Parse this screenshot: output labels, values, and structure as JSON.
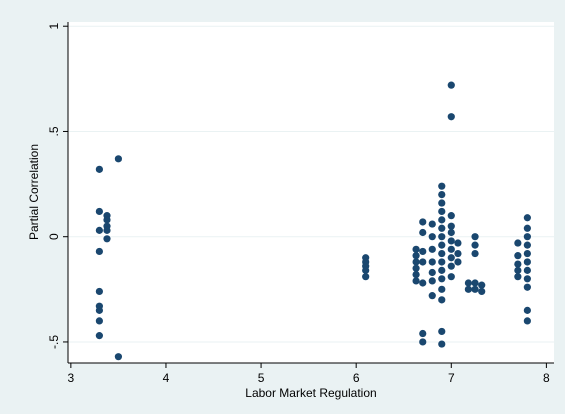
{
  "chart_data": {
    "type": "scatter",
    "title": "",
    "xlabel": "Labor Market Regulation",
    "ylabel": "Partial Correlation",
    "xlim": [
      2.97,
      8.08
    ],
    "ylim": [
      -0.6,
      1.02
    ],
    "xticks": [
      3,
      4,
      5,
      6,
      7,
      8
    ],
    "yticks": [
      1,
      0.5,
      0,
      -0.5
    ],
    "ytick_labels": [
      "1",
      ".5",
      "0",
      "-.5"
    ],
    "grid": "horizontal",
    "colors": {
      "background": "#eaf2f3",
      "plot": "#ffffff",
      "marker": "#1a476f",
      "grid": "#eaf2f3",
      "axis": "#000000"
    },
    "points": [
      [
        3.3,
        0.32
      ],
      [
        3.3,
        0.12
      ],
      [
        3.3,
        0.03
      ],
      [
        3.3,
        -0.07
      ],
      [
        3.3,
        -0.26
      ],
      [
        3.3,
        -0.33
      ],
      [
        3.3,
        -0.35
      ],
      [
        3.3,
        -0.4
      ],
      [
        3.3,
        -0.47
      ],
      [
        3.38,
        0.1
      ],
      [
        3.38,
        0.08
      ],
      [
        3.38,
        0.05
      ],
      [
        3.38,
        0.03
      ],
      [
        3.38,
        -0.01
      ],
      [
        3.5,
        0.37
      ],
      [
        3.5,
        -0.57
      ],
      [
        6.1,
        -0.1
      ],
      [
        6.1,
        -0.12
      ],
      [
        6.1,
        -0.14
      ],
      [
        6.1,
        -0.16
      ],
      [
        6.1,
        -0.19
      ],
      [
        6.63,
        -0.06
      ],
      [
        6.63,
        -0.09
      ],
      [
        6.63,
        -0.12
      ],
      [
        6.63,
        -0.15
      ],
      [
        6.63,
        -0.18
      ],
      [
        6.63,
        -0.21
      ],
      [
        6.7,
        0.07
      ],
      [
        6.7,
        0.02
      ],
      [
        6.7,
        -0.07
      ],
      [
        6.7,
        -0.12
      ],
      [
        6.7,
        -0.22
      ],
      [
        6.7,
        -0.46
      ],
      [
        6.7,
        -0.5
      ],
      [
        6.8,
        0.06
      ],
      [
        6.8,
        0.0
      ],
      [
        6.8,
        -0.06
      ],
      [
        6.8,
        -0.12
      ],
      [
        6.8,
        -0.17
      ],
      [
        6.8,
        -0.21
      ],
      [
        6.8,
        -0.28
      ],
      [
        6.9,
        0.24
      ],
      [
        6.9,
        0.2
      ],
      [
        6.9,
        0.16
      ],
      [
        6.9,
        0.12
      ],
      [
        6.9,
        0.08
      ],
      [
        6.9,
        0.04
      ],
      [
        6.9,
        0.0
      ],
      [
        6.9,
        -0.04
      ],
      [
        6.9,
        -0.08
      ],
      [
        6.9,
        -0.12
      ],
      [
        6.9,
        -0.16
      ],
      [
        6.9,
        -0.2
      ],
      [
        6.9,
        -0.25
      ],
      [
        6.9,
        -0.3
      ],
      [
        6.9,
        -0.45
      ],
      [
        6.9,
        -0.51
      ],
      [
        7.0,
        0.72
      ],
      [
        7.0,
        0.57
      ],
      [
        7.0,
        0.1
      ],
      [
        7.0,
        0.05
      ],
      [
        7.0,
        0.02
      ],
      [
        7.0,
        -0.02
      ],
      [
        7.0,
        -0.06
      ],
      [
        7.0,
        -0.1
      ],
      [
        7.0,
        -0.14
      ],
      [
        7.0,
        -0.19
      ],
      [
        7.07,
        -0.03
      ],
      [
        7.07,
        -0.08
      ],
      [
        7.07,
        -0.12
      ],
      [
        7.18,
        -0.22
      ],
      [
        7.18,
        -0.25
      ],
      [
        7.25,
        0.0
      ],
      [
        7.25,
        -0.04
      ],
      [
        7.25,
        -0.08
      ],
      [
        7.25,
        -0.22
      ],
      [
        7.25,
        -0.25
      ],
      [
        7.32,
        -0.23
      ],
      [
        7.32,
        -0.26
      ],
      [
        7.7,
        -0.03
      ],
      [
        7.7,
        -0.09
      ],
      [
        7.7,
        -0.13
      ],
      [
        7.7,
        -0.16
      ],
      [
        7.7,
        -0.19
      ],
      [
        7.8,
        0.09
      ],
      [
        7.8,
        0.04
      ],
      [
        7.8,
        0.0
      ],
      [
        7.8,
        -0.04
      ],
      [
        7.8,
        -0.08
      ],
      [
        7.8,
        -0.12
      ],
      [
        7.8,
        -0.16
      ],
      [
        7.8,
        -0.2
      ],
      [
        7.8,
        -0.24
      ],
      [
        7.8,
        -0.35
      ],
      [
        7.8,
        -0.4
      ]
    ]
  }
}
